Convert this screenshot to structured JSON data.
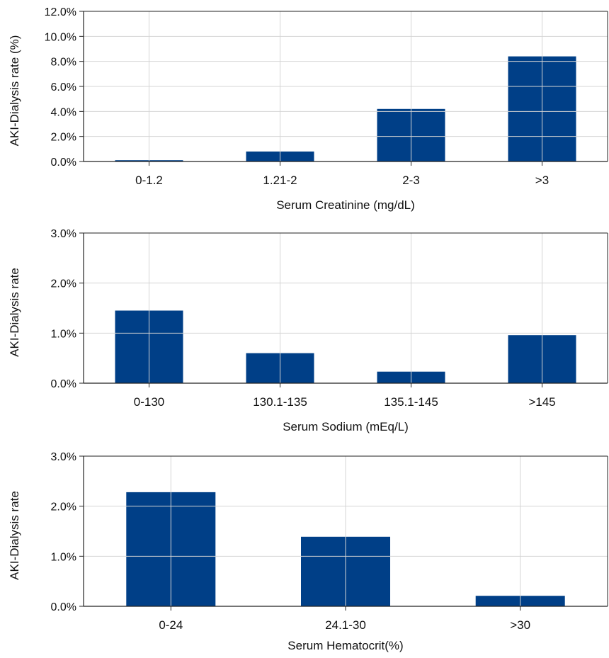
{
  "chart_data": [
    {
      "type": "bar",
      "categories": [
        "0-1.2",
        "1.21-2",
        "2-3",
        ">3"
      ],
      "values": [
        0.1,
        0.8,
        4.2,
        8.4
      ],
      "xlabel": "Serum Creatinine (mg/dL)",
      "ylabel": "AKI-Dialysis rate (%)",
      "ylim": [
        0,
        12
      ],
      "yticks": [
        "0.0%",
        "2.0%",
        "4.0%",
        "6.0%",
        "8.0%",
        "10.0%",
        "12.0%"
      ],
      "grid": true,
      "bar_color": "#003f87"
    },
    {
      "type": "bar",
      "categories": [
        "0-130",
        "130.1-135",
        "135.1-145",
        ">145"
      ],
      "values": [
        1.45,
        0.6,
        0.23,
        0.96
      ],
      "xlabel": "Serum Sodium (mEq/L)",
      "ylabel": "AKI-Dialysis rate",
      "ylim": [
        0,
        3
      ],
      "yticks": [
        "0.0%",
        "1.0%",
        "2.0%",
        "3.0%"
      ],
      "grid": true,
      "bar_color": "#003f87"
    },
    {
      "type": "bar",
      "categories": [
        "0-24",
        "24.1-30",
        ">30"
      ],
      "values": [
        2.28,
        1.39,
        0.21
      ],
      "xlabel": "Serum Hematocrit(%)",
      "ylabel": "AKI-Dialysis rate",
      "ylim": [
        0,
        3
      ],
      "yticks": [
        "0.0%",
        "1.0%",
        "2.0%",
        "3.0%"
      ],
      "grid": true,
      "bar_color": "#003f87"
    }
  ]
}
